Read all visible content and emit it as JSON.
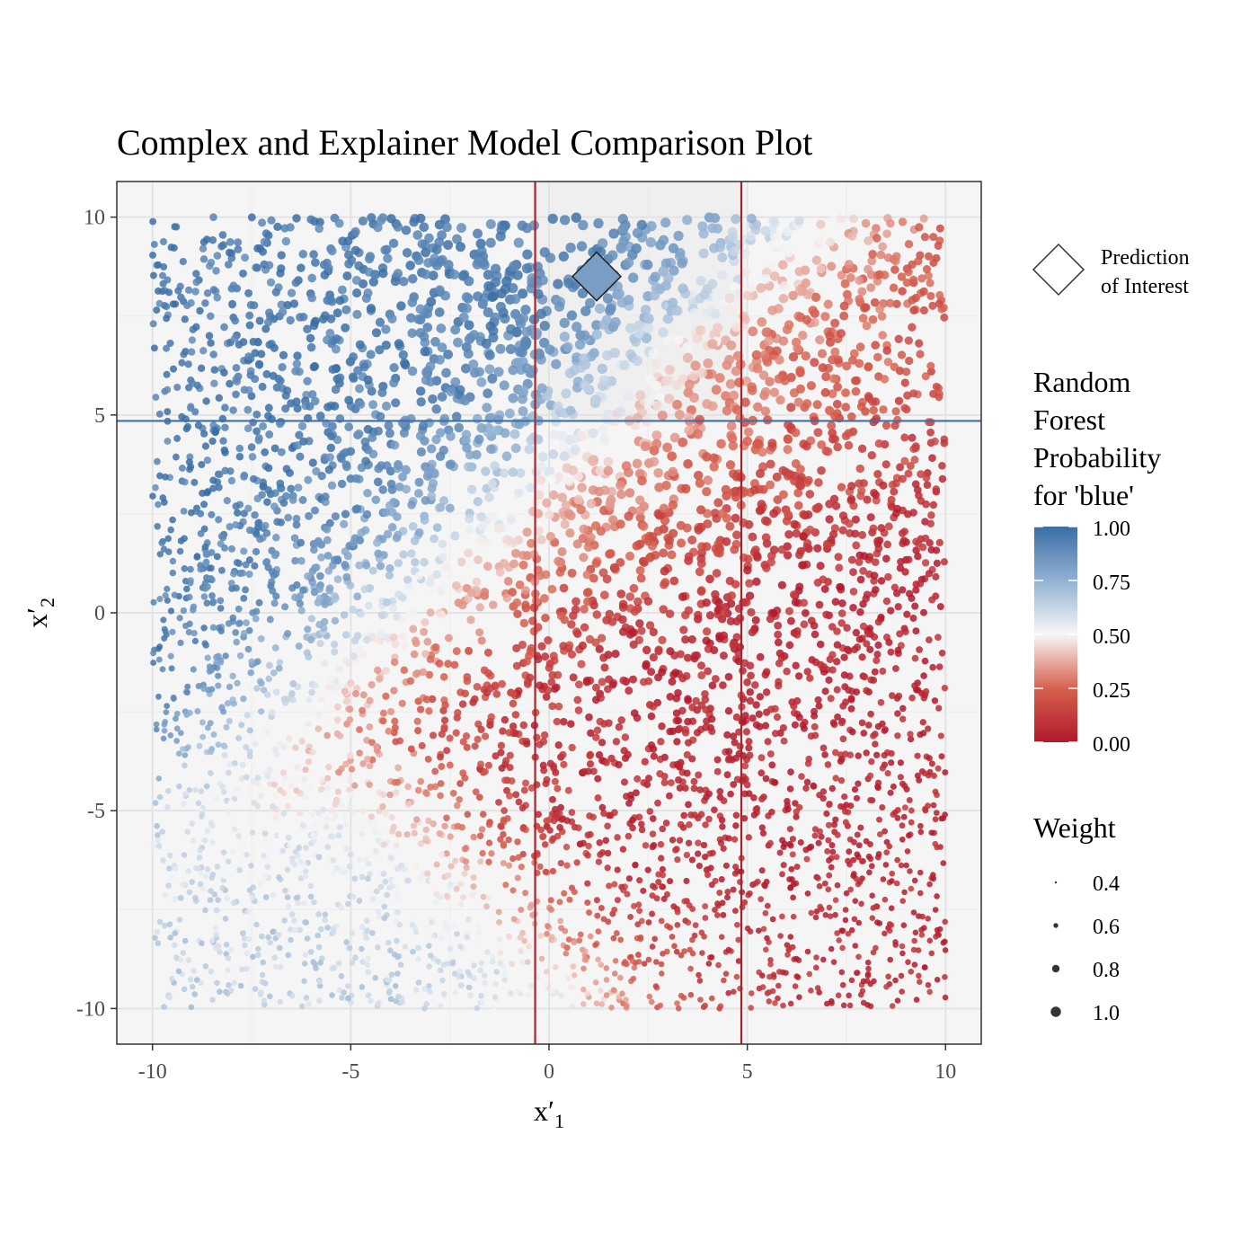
{
  "chart_data": {
    "type": "scatter",
    "title": "Complex and Explainer Model Comparison Plot",
    "xlabel": {
      "main": "x′",
      "sub": "1"
    },
    "ylabel": {
      "main": "x′",
      "sub": "2"
    },
    "xlim": [
      -10.9,
      10.9
    ],
    "ylim": [
      -10.9,
      10.9
    ],
    "xticks": [
      -10,
      -5,
      0,
      5,
      10
    ],
    "yticks": [
      -10,
      -5,
      0,
      5,
      10
    ],
    "xtick_labels": [
      "-10",
      "-5",
      "0",
      "5",
      "10"
    ],
    "ytick_labels": [
      "-10",
      "-5",
      "0",
      "5",
      "10"
    ],
    "grid": true,
    "background": "#f5f5f5",
    "explainer_region": {
      "x_range": [
        -0.35,
        4.85
      ],
      "y_range": [
        4.85,
        10.9
      ],
      "fill": "#efefef"
    },
    "reference_lines": [
      {
        "orientation": "vertical",
        "value": -0.35,
        "color": "#a3262e"
      },
      {
        "orientation": "vertical",
        "value": 4.85,
        "color": "#a3262e"
      },
      {
        "orientation": "horizontal",
        "value": 4.85,
        "color": "#3e6fa6"
      }
    ],
    "prediction_of_interest": {
      "x": 1.2,
      "y": 8.5,
      "marker": "diamond"
    },
    "points": {
      "count": 5200,
      "x_range": [
        -10,
        10
      ],
      "y_range": [
        -10,
        10
      ],
      "color_variable": "Random Forest Probability for 'blue'",
      "size_variable": "Weight",
      "probability_regions": [
        {
          "description": "upper-left",
          "x_range": [
            -10,
            -2.5
          ],
          "y_range": [
            -2,
            10
          ],
          "prob": 0.95
        },
        {
          "description": "lower-right",
          "x_range": [
            2,
            10
          ],
          "y_range": [
            -10,
            2
          ],
          "prob": 0.03
        },
        {
          "description": "top band",
          "x_range": [
            -2.5,
            10
          ],
          "y_range": [
            5,
            10
          ],
          "prob": 0.6
        }
      ]
    },
    "color_scale": {
      "stops": [
        {
          "value": 0.0,
          "color": "#b2182b"
        },
        {
          "value": 0.25,
          "color": "#d6604d"
        },
        {
          "value": 0.5,
          "color": "#f7f7f7"
        },
        {
          "value": 0.75,
          "color": "#92b1d2"
        },
        {
          "value": 1.0,
          "color": "#3a6ea5"
        }
      ],
      "tick_labels": [
        "1.00",
        "0.75",
        "0.50",
        "0.25",
        "0.00"
      ],
      "tick_values": [
        1.0,
        0.75,
        0.5,
        0.25,
        0.0
      ]
    },
    "legends": {
      "prediction": {
        "line1": "Prediction",
        "line2": "of Interest"
      },
      "colorbar": {
        "title_lines": [
          "Random",
          "Forest",
          "Probability",
          "for 'blue'"
        ]
      },
      "weight": {
        "title": "Weight",
        "values": [
          0.4,
          0.6,
          0.8,
          1.0
        ],
        "labels": [
          "0.4",
          "0.6",
          "0.8",
          "1.0"
        ]
      }
    }
  }
}
